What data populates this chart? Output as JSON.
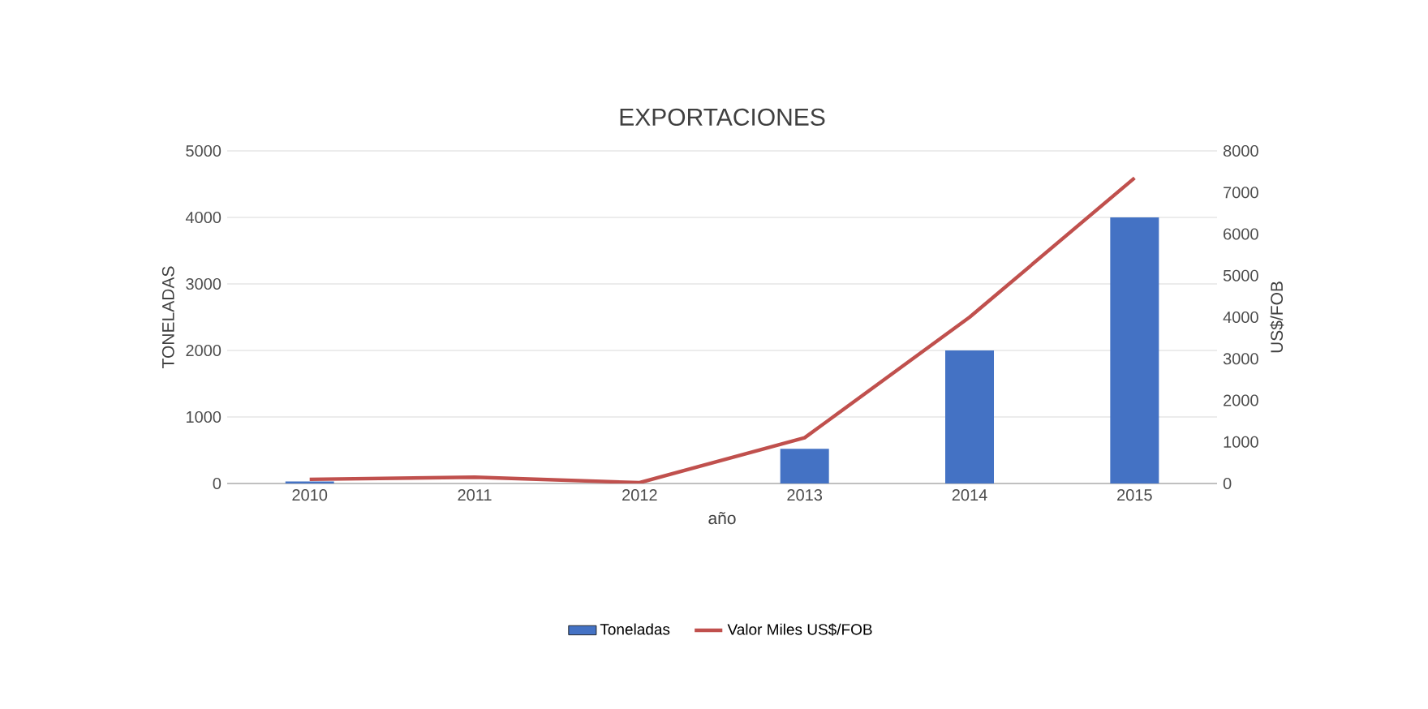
{
  "chart_data": {
    "type": "bar",
    "title": "EXPORTACIONES",
    "xlabel": "año",
    "ylabel": "TONELADAS",
    "y2label": "US$/FOB",
    "categories": [
      "2010",
      "2011",
      "2012",
      "2013",
      "2014",
      "2015"
    ],
    "series": [
      {
        "name": "Toneladas",
        "color": "#4472c4",
        "values": [
          30,
          0,
          0,
          520,
          2000,
          4000
        ]
      },
      {
        "name": "Valor Miles US$/FOB",
        "type": "line",
        "axis": "y2",
        "color": "#c0504d",
        "values": [
          100,
          150,
          20,
          1100,
          4000,
          7350
        ]
      }
    ],
    "ylim": [
      0,
      5000
    ],
    "yticks": [
      0,
      1000,
      2000,
      3000,
      4000,
      5000
    ],
    "y2lim": [
      0,
      8000
    ],
    "y2ticks": [
      0,
      1000,
      2000,
      3000,
      4000,
      5000,
      6000,
      7000,
      8000
    ],
    "grid": "y",
    "legend": "bottom",
    "marker": "none"
  }
}
